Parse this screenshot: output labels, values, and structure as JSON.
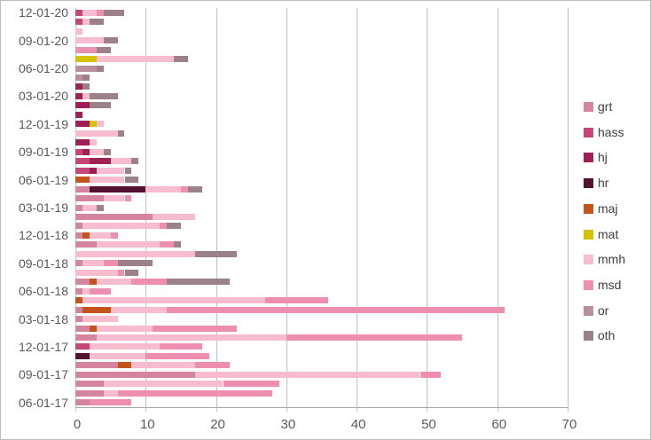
{
  "chart_data": {
    "type": "bar",
    "orientation": "horizontal",
    "stacked": true,
    "title": "",
    "xlabel": "",
    "ylabel": "",
    "xlim": [
      0,
      70
    ],
    "x_ticks": [
      0,
      10,
      20,
      30,
      40,
      50,
      60,
      70
    ],
    "grid": "vertical-only",
    "legend_position": "right",
    "colors": {
      "grid": "#bfbfbf",
      "axis": "#a6a6a6",
      "axis_text": "#595959",
      "legend_text": "#404040",
      "background": "#ffffff"
    },
    "series": [
      {
        "name": "grt",
        "color": "#d4849f"
      },
      {
        "name": "hass",
        "color": "#c64677"
      },
      {
        "name": "hj",
        "color": "#9e2155"
      },
      {
        "name": "hr",
        "color": "#551230"
      },
      {
        "name": "maj",
        "color": "#c2541c"
      },
      {
        "name": "mat",
        "color": "#d5c300"
      },
      {
        "name": "mmh",
        "color": "#f7bcce"
      },
      {
        "name": "msd",
        "color": "#ee8eb1"
      },
      {
        "name": "or",
        "color": "#b98f9b"
      },
      {
        "name": "oth",
        "color": "#9b8289"
      }
    ],
    "rows": [
      {
        "label": "12-01-20",
        "segments": {
          "hass": 1,
          "mmh": 2,
          "msd": 1,
          "oth": 3
        }
      },
      {
        "label": "",
        "segments": {
          "hass": 1,
          "mmh": 1,
          "oth": 2
        }
      },
      {
        "label": "",
        "segments": {
          "mmh": 1
        }
      },
      {
        "label": "09-01-20",
        "segments": {
          "mmh": 4,
          "oth": 2
        }
      },
      {
        "label": "",
        "segments": {
          "msd": 3,
          "oth": 2
        }
      },
      {
        "label": "",
        "segments": {
          "mat": 3,
          "mmh": 11,
          "oth": 2
        }
      },
      {
        "label": "06-01-20",
        "segments": {
          "or": 3,
          "oth": 1
        }
      },
      {
        "label": "",
        "segments": {
          "or": 1,
          "oth": 1
        }
      },
      {
        "label": "",
        "segments": {
          "hj": 1,
          "oth": 1
        }
      },
      {
        "label": "03-01-20",
        "segments": {
          "hj": 1,
          "mmh": 1,
          "oth": 4
        }
      },
      {
        "label": "",
        "segments": {
          "hj": 2,
          "oth": 3
        }
      },
      {
        "label": "",
        "segments": {
          "hj": 1
        }
      },
      {
        "label": "12-01-19",
        "segments": {
          "hj": 2,
          "mat": 1,
          "mmh": 1
        }
      },
      {
        "label": "",
        "segments": {
          "mmh": 6,
          "oth": 1
        }
      },
      {
        "label": "",
        "segments": {
          "hj": 2,
          "mmh": 1
        }
      },
      {
        "label": "09-01-19",
        "segments": {
          "hass": 1,
          "hj": 1,
          "mmh": 2,
          "oth": 1
        }
      },
      {
        "label": "",
        "segments": {
          "hass": 2,
          "hj": 3,
          "mmh": 3,
          "oth": 1
        }
      },
      {
        "label": "",
        "segments": {
          "hass": 2,
          "hj": 1,
          "mmh": 4,
          "oth": 1
        }
      },
      {
        "label": "06-01-19",
        "segments": {
          "maj": 2,
          "mmh": 5,
          "oth": 2
        }
      },
      {
        "label": "",
        "segments": {
          "grt": 2,
          "hr": 8,
          "mmh": 5,
          "msd": 1,
          "oth": 2
        }
      },
      {
        "label": "",
        "segments": {
          "grt": 4,
          "mmh": 3,
          "msd": 1
        }
      },
      {
        "label": "03-01-19",
        "segments": {
          "grt": 1,
          "mmh": 2,
          "oth": 1
        }
      },
      {
        "label": "",
        "segments": {
          "grt": 11,
          "mmh": 6
        }
      },
      {
        "label": "",
        "segments": {
          "grt": 1,
          "mmh": 11,
          "msd": 1,
          "oth": 2
        }
      },
      {
        "label": "12-01-18",
        "segments": {
          "grt": 1,
          "maj": 1,
          "mmh": 3,
          "msd": 1
        }
      },
      {
        "label": "",
        "segments": {
          "grt": 3,
          "mmh": 9,
          "msd": 2,
          "oth": 1
        }
      },
      {
        "label": "",
        "segments": {
          "mmh": 17,
          "oth": 6
        }
      },
      {
        "label": "09-01-18",
        "segments": {
          "grt": 1,
          "mmh": 3,
          "msd": 2,
          "oth": 5
        }
      },
      {
        "label": "",
        "segments": {
          "mmh": 6,
          "msd": 1,
          "oth": 2
        }
      },
      {
        "label": "",
        "segments": {
          "grt": 2,
          "maj": 1,
          "mmh": 5,
          "msd": 5,
          "oth": 9
        }
      },
      {
        "label": "06-01-18",
        "segments": {
          "grt": 1,
          "mmh": 1,
          "msd": 3
        }
      },
      {
        "label": "",
        "segments": {
          "maj": 1,
          "mmh": 26,
          "msd": 9
        }
      },
      {
        "label": "",
        "segments": {
          "grt": 1,
          "maj": 4,
          "mmh": 8,
          "msd": 48
        }
      },
      {
        "label": "03-01-18",
        "segments": {
          "grt": 1,
          "mmh": 5
        }
      },
      {
        "label": "",
        "segments": {
          "grt": 2,
          "maj": 1,
          "mmh": 8,
          "msd": 12
        }
      },
      {
        "label": "",
        "segments": {
          "grt": 3,
          "mmh": 27,
          "msd": 25
        }
      },
      {
        "label": "12-01-17",
        "segments": {
          "hass": 2,
          "mmh": 10,
          "msd": 6
        }
      },
      {
        "label": "",
        "segments": {
          "hr": 2,
          "mmh": 8,
          "msd": 9
        }
      },
      {
        "label": "",
        "segments": {
          "grt": 6,
          "maj": 2,
          "mmh": 9,
          "msd": 5
        }
      },
      {
        "label": "09-01-17",
        "segments": {
          "grt": 17,
          "mmh": 32,
          "msd": 3
        }
      },
      {
        "label": "",
        "segments": {
          "grt": 4,
          "mmh": 17,
          "msd": 8
        }
      },
      {
        "label": "",
        "segments": {
          "grt": 4,
          "mmh": 2,
          "msd": 22
        }
      },
      {
        "label": "06-01-17",
        "segments": {
          "grt": 2,
          "msd": 6
        }
      }
    ]
  }
}
